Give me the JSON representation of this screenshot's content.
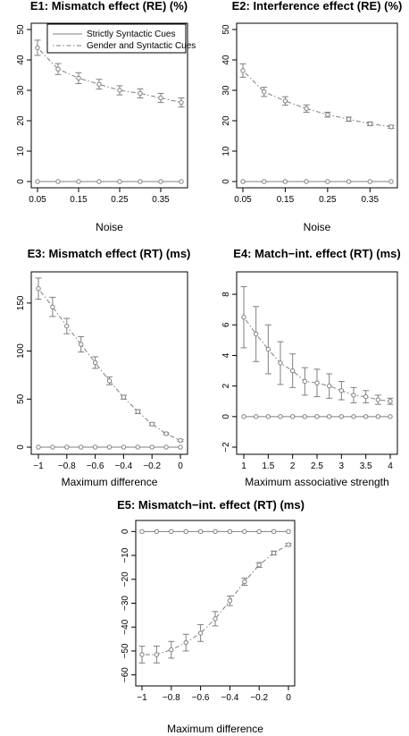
{
  "legend": {
    "items": [
      {
        "label": "Strictly Syntactic Cues",
        "style": "solid"
      },
      {
        "label": "Gender and Syntactic Cues",
        "style": "dotdash"
      }
    ]
  },
  "colors": {
    "line": "#7f7f7f",
    "axis": "#000000",
    "background": "#ffffff"
  },
  "chart_data": [
    {
      "type": "line",
      "title": "E1: Mismatch effect (RE) (%)",
      "xlabel": "Noise",
      "ylabel": "",
      "x": [
        0.05,
        0.1,
        0.15,
        0.2,
        0.25,
        0.3,
        0.35,
        0.4
      ],
      "xticks": [
        0.05,
        0.15,
        0.25,
        0.35
      ],
      "xtick_labels": [
        "0.05",
        "0.15",
        "0.25",
        "0.35"
      ],
      "xlim": [
        0.05,
        0.4
      ],
      "ylim": [
        0,
        50
      ],
      "yticks": [
        0,
        10,
        20,
        30,
        40,
        50
      ],
      "ytick_labels": [
        "0",
        "10",
        "20",
        "30",
        "40",
        "50"
      ],
      "series": [
        {
          "name": "Strictly Syntactic Cues",
          "values": [
            0,
            0,
            0,
            0,
            0,
            0,
            0,
            0
          ]
        },
        {
          "name": "Gender and Syntactic Cues",
          "values": [
            44,
            37,
            34,
            32,
            30,
            29,
            27.5,
            26
          ],
          "error": [
            2.5,
            1.8,
            1.8,
            1.6,
            1.5,
            1.5,
            1.5,
            1.5
          ]
        }
      ]
    },
    {
      "type": "line",
      "title": "E2: Interference effect (RE) (%)",
      "xlabel": "Noise",
      "ylabel": "",
      "x": [
        0.05,
        0.1,
        0.15,
        0.2,
        0.25,
        0.3,
        0.35,
        0.4
      ],
      "xticks": [
        0.05,
        0.15,
        0.25,
        0.35
      ],
      "xtick_labels": [
        "0.05",
        "0.15",
        "0.25",
        "0.35"
      ],
      "xlim": [
        0.05,
        0.4
      ],
      "ylim": [
        0,
        50
      ],
      "yticks": [
        0,
        10,
        20,
        30,
        40,
        50
      ],
      "ytick_labels": [
        "0",
        "10",
        "20",
        "30",
        "40",
        "50"
      ],
      "series": [
        {
          "name": "Strictly Syntactic Cues",
          "values": [
            0,
            0,
            0,
            0,
            0,
            0,
            0,
            0
          ]
        },
        {
          "name": "Gender and Syntactic Cues",
          "values": [
            36.5,
            29.5,
            26.5,
            24,
            22,
            20.5,
            19,
            18
          ],
          "error": [
            2.2,
            1.5,
            1.4,
            1.2,
            0.8,
            0.7,
            0.6,
            0.5
          ]
        }
      ]
    },
    {
      "type": "line",
      "title": "E3: Mismatch effect (RT) (ms)",
      "xlabel": "Maximum difference",
      "ylabel": "",
      "x": [
        -1,
        -0.9,
        -0.8,
        -0.7,
        -0.6,
        -0.5,
        -0.4,
        -0.3,
        -0.2,
        -0.1,
        0
      ],
      "xticks": [
        -1,
        -0.8,
        -0.6,
        -0.4,
        -0.2,
        0
      ],
      "xtick_labels": [
        "−1",
        "−0.8",
        "−0.6",
        "−0.4",
        "−0.2",
        "0"
      ],
      "xlim": [
        -1,
        0
      ],
      "ylim": [
        0,
        175
      ],
      "yticks": [
        0,
        50,
        100,
        150
      ],
      "ytick_labels": [
        "0",
        "50",
        "100",
        "150"
      ],
      "series": [
        {
          "name": "Strictly Syntactic Cues",
          "values": [
            0,
            0,
            0,
            0,
            0,
            0,
            0,
            0,
            0,
            0,
            0
          ]
        },
        {
          "name": "Gender and Syntactic Cues",
          "values": [
            165,
            146,
            126,
            107,
            88,
            69,
            52,
            37,
            24,
            14,
            7
          ],
          "error": [
            11,
            10,
            8,
            8,
            6,
            4,
            2,
            2,
            1.5,
            1,
            1
          ]
        }
      ]
    },
    {
      "type": "line",
      "title": "E4: Match−int. effect (RT) (ms)",
      "xlabel": "Maximum associative strength",
      "ylabel": "",
      "x": [
        1,
        1.25,
        1.5,
        1.75,
        2,
        2.25,
        2.5,
        2.75,
        3,
        3.25,
        3.5,
        3.75,
        4
      ],
      "xticks": [
        1,
        1.5,
        2,
        2.5,
        3,
        3.5,
        4
      ],
      "xtick_labels": [
        "1",
        "1.5",
        "2",
        "2.5",
        "3",
        "3.5",
        "4"
      ],
      "xlim": [
        1,
        4
      ],
      "ylim": [
        -2,
        9
      ],
      "yticks": [
        -2,
        0,
        2,
        4,
        6,
        8
      ],
      "ytick_labels": [
        "−2",
        "0",
        "2",
        "4",
        "6",
        "8"
      ],
      "series": [
        {
          "name": "Strictly Syntactic Cues",
          "values": [
            0,
            0,
            0,
            0,
            0,
            0,
            0,
            0,
            0,
            0,
            0,
            0,
            0
          ]
        },
        {
          "name": "Gender and Syntactic Cues",
          "values": [
            6.5,
            5.4,
            4.4,
            3.5,
            3,
            2.3,
            2.2,
            2,
            1.7,
            1.4,
            1.3,
            1.1,
            1
          ],
          "error": [
            2,
            1.8,
            1.6,
            1.4,
            1.1,
            0.9,
            0.9,
            0.8,
            0.6,
            0.5,
            0.4,
            0.3,
            0.2
          ]
        }
      ]
    },
    {
      "type": "line",
      "title": "E5: Mismatch−int. effect (RT) (ms)",
      "xlabel": "Maximum difference",
      "ylabel": "",
      "x": [
        -1,
        -0.9,
        -0.8,
        -0.7,
        -0.6,
        -0.5,
        -0.4,
        -0.3,
        -0.2,
        -0.1,
        0
      ],
      "xticks": [
        -1,
        -0.8,
        -0.6,
        -0.4,
        -0.2,
        0
      ],
      "xtick_labels": [
        "−1",
        "−0.8",
        "−0.6",
        "−0.4",
        "−0.2",
        "0"
      ],
      "xlim": [
        -1,
        0
      ],
      "ylim": [
        -62,
        2
      ],
      "yticks": [
        0,
        -10,
        -20,
        -30,
        -40,
        -50,
        -60
      ],
      "ytick_labels": [
        "0",
        "−10",
        "−20",
        "−30",
        "−40",
        "−50",
        "−60"
      ],
      "series": [
        {
          "name": "Strictly Syntactic Cues",
          "values": [
            0,
            0,
            0,
            0,
            0,
            0,
            0,
            0,
            0,
            0,
            0
          ]
        },
        {
          "name": "Gender and Syntactic Cues",
          "values": [
            -51.5,
            -51.5,
            -49.5,
            -46.5,
            -42.5,
            -36.5,
            -29,
            -21,
            -14,
            -9,
            -5.5
          ],
          "error": [
            3.5,
            3.5,
            3.5,
            3.5,
            3.5,
            3,
            2,
            1.5,
            1,
            0.8,
            0.5
          ]
        }
      ]
    }
  ]
}
